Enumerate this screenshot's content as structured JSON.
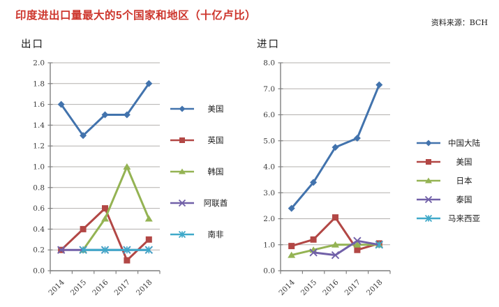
{
  "page": {
    "title": "印度进出口量最大的5个国家和地区（十亿卢比）",
    "source": "资料来源：BCH"
  },
  "colors": {
    "title_red": "#cd352c",
    "series_blue": "#4273ad",
    "series_red": "#b24745",
    "series_green": "#94b353",
    "series_purple": "#7160a8",
    "series_cyan": "#3fa9c9",
    "gridline": "#b3b0ae",
    "axis": "#7f7f7f"
  },
  "chart_data": [
    {
      "type": "line",
      "title": "出口",
      "categories": [
        "2014",
        "2015",
        "2016",
        "2017",
        "2018"
      ],
      "ylim": [
        0.0,
        2.0
      ],
      "ytick_step": 0.2,
      "grid": true,
      "legend_position": "right",
      "series": [
        {
          "name": "美国",
          "marker": "diamond",
          "color": "#4273ad",
          "values": [
            1.6,
            1.3,
            1.5,
            1.5,
            1.8
          ]
        },
        {
          "name": "英国",
          "marker": "square",
          "color": "#b24745",
          "values": [
            0.2,
            0.4,
            0.6,
            0.1,
            0.3
          ]
        },
        {
          "name": "韩国",
          "marker": "triangle",
          "color": "#94b353",
          "values": [
            null,
            0.2,
            0.5,
            1.0,
            0.5
          ]
        },
        {
          "name": "阿联酋",
          "marker": "x",
          "color": "#7160a8",
          "values": [
            0.2,
            0.2,
            0.2,
            0.2,
            0.2
          ]
        },
        {
          "name": "南非",
          "marker": "asterisk",
          "color": "#3fa9c9",
          "values": [
            null,
            0.2,
            0.2,
            0.2,
            0.2
          ]
        }
      ]
    },
    {
      "type": "line",
      "title": "进口",
      "categories": [
        "2014",
        "2015",
        "2016",
        "2017",
        "2018"
      ],
      "ylim": [
        0.0,
        8.0
      ],
      "ytick_step": 1.0,
      "grid": true,
      "legend_position": "right",
      "series": [
        {
          "name": "中国大陆",
          "marker": "diamond",
          "color": "#4273ad",
          "values": [
            2.4,
            3.4,
            4.75,
            5.1,
            7.15
          ]
        },
        {
          "name": "美国",
          "marker": "square",
          "color": "#b24745",
          "values": [
            0.95,
            1.2,
            2.05,
            0.8,
            1.05
          ]
        },
        {
          "name": "日本",
          "marker": "triangle",
          "color": "#94b353",
          "values": [
            0.6,
            0.8,
            1.0,
            1.0,
            1.0
          ]
        },
        {
          "name": "泰国",
          "marker": "x",
          "color": "#7160a8",
          "values": [
            null,
            0.7,
            0.6,
            1.15,
            1.0
          ]
        },
        {
          "name": "马来西亚",
          "marker": "asterisk",
          "color": "#3fa9c9",
          "values": [
            null,
            null,
            null,
            null,
            1.0
          ]
        }
      ]
    }
  ]
}
